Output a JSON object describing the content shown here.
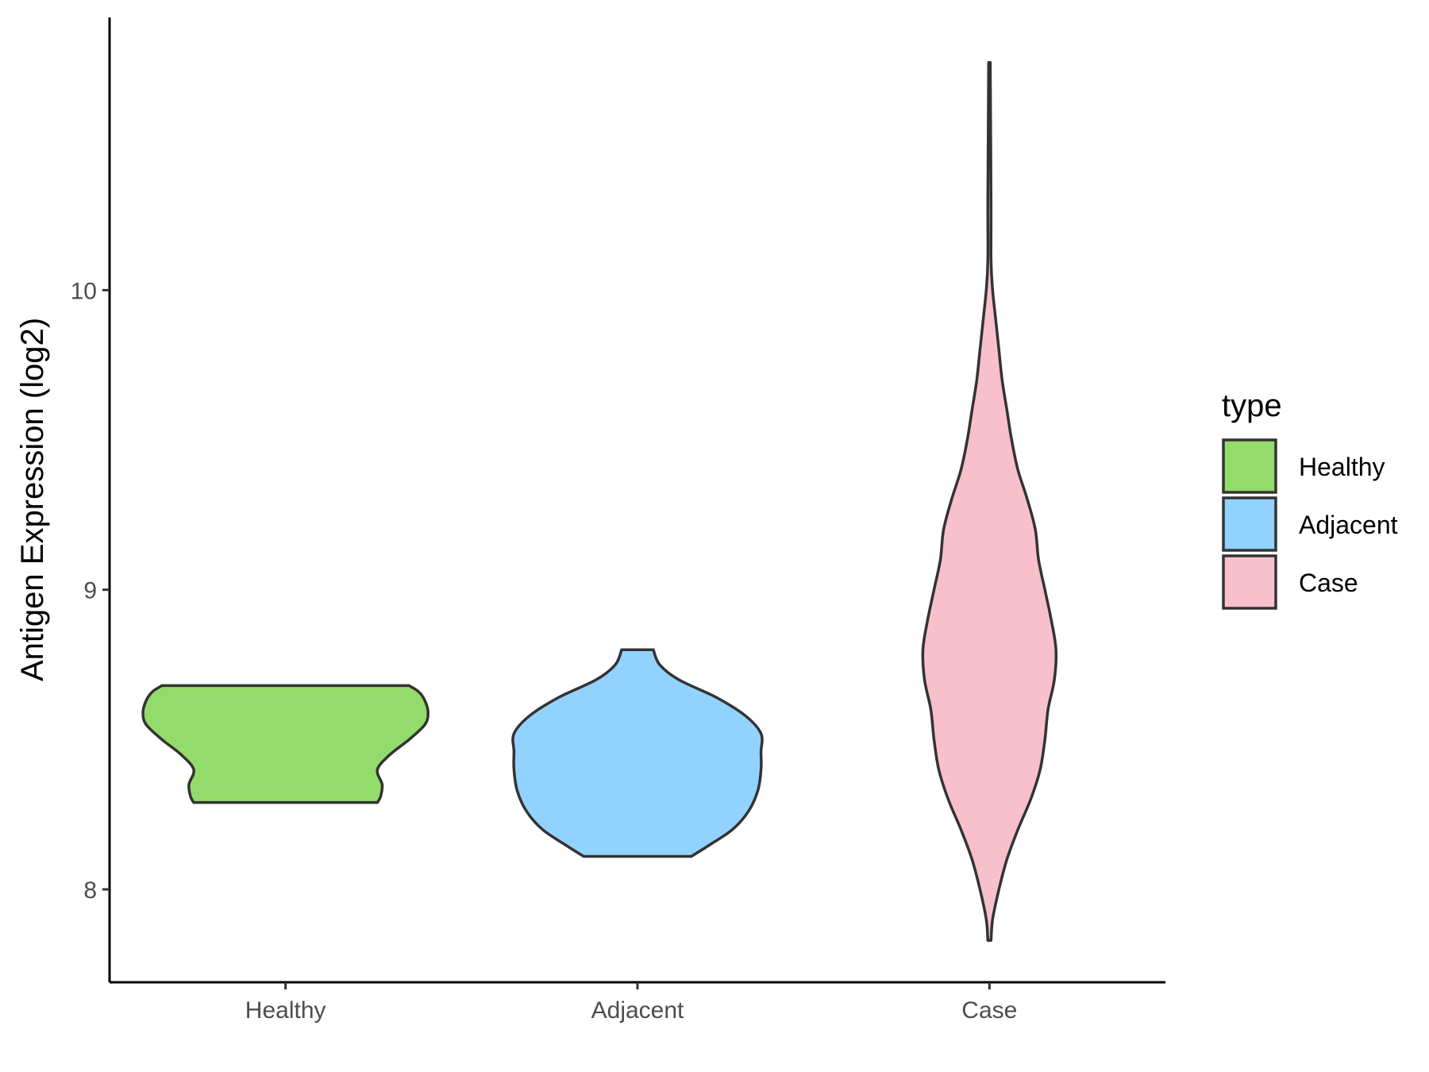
{
  "chart_data": {
    "type": "violin",
    "categories": [
      "Healthy",
      "Adjacent",
      "Case"
    ],
    "ylabel": "Antigen Expression (log2)",
    "ylim": [
      7.69,
      10.91
    ],
    "yticks": [
      8,
      9,
      10
    ],
    "grid": false,
    "legend": {
      "title": "type",
      "placement": "right",
      "items": [
        "Healthy",
        "Adjacent",
        "Case"
      ]
    },
    "series": [
      {
        "category": "Healthy",
        "color": "#93DB6A",
        "min": 8.29,
        "max": 8.68,
        "profile": [
          [
            8.29,
            0.58
          ],
          [
            8.31,
            0.6
          ],
          [
            8.35,
            0.61
          ],
          [
            8.4,
            0.58
          ],
          [
            8.45,
            0.66
          ],
          [
            8.5,
            0.78
          ],
          [
            8.55,
            0.88
          ],
          [
            8.59,
            0.9
          ],
          [
            8.63,
            0.88
          ],
          [
            8.66,
            0.84
          ],
          [
            8.68,
            0.78
          ]
        ]
      },
      {
        "category": "Adjacent",
        "color": "#92D2FF",
        "min": 8.11,
        "max": 8.8,
        "profile": [
          [
            8.11,
            0.34
          ],
          [
            8.15,
            0.46
          ],
          [
            8.2,
            0.6
          ],
          [
            8.26,
            0.7
          ],
          [
            8.33,
            0.76
          ],
          [
            8.4,
            0.78
          ],
          [
            8.46,
            0.78
          ],
          [
            8.52,
            0.78
          ],
          [
            8.58,
            0.68
          ],
          [
            8.64,
            0.5
          ],
          [
            8.7,
            0.26
          ],
          [
            8.75,
            0.14
          ],
          [
            8.8,
            0.1
          ]
        ]
      },
      {
        "category": "Case",
        "color": "#F7C0CC",
        "min": 7.83,
        "max": 10.76,
        "profile": [
          [
            7.83,
            0.01
          ],
          [
            7.9,
            0.02
          ],
          [
            8.0,
            0.06
          ],
          [
            8.1,
            0.11
          ],
          [
            8.2,
            0.18
          ],
          [
            8.3,
            0.26
          ],
          [
            8.4,
            0.32
          ],
          [
            8.5,
            0.35
          ],
          [
            8.6,
            0.37
          ],
          [
            8.7,
            0.41
          ],
          [
            8.8,
            0.42
          ],
          [
            8.9,
            0.39
          ],
          [
            9.0,
            0.35
          ],
          [
            9.1,
            0.31
          ],
          [
            9.2,
            0.29
          ],
          [
            9.3,
            0.24
          ],
          [
            9.4,
            0.18
          ],
          [
            9.5,
            0.14
          ],
          [
            9.6,
            0.11
          ],
          [
            9.7,
            0.08
          ],
          [
            9.8,
            0.06
          ],
          [
            9.9,
            0.04
          ],
          [
            10.0,
            0.02
          ],
          [
            10.1,
            0.01
          ],
          [
            10.3,
            0.01
          ],
          [
            10.76,
            0.005
          ]
        ]
      }
    ]
  }
}
